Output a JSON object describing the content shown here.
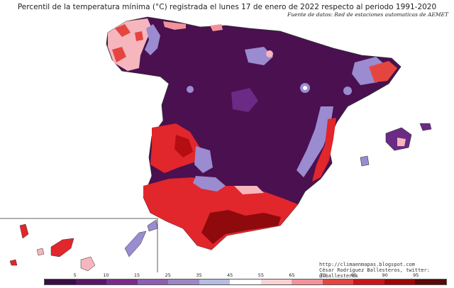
{
  "title": "Percentil de la temperatura mínima (°C) registrada el lunes 17 de enero de 2022 respecto al periodo 1991-2020",
  "source": "Fuente de datos: Red de estaciones automaticas de AEMET",
  "credit": {
    "url": "http://climaenmapas.blogspot.com",
    "author": "César Rodríguez Ballesteros, twitter: @cballesteros"
  },
  "legend": {
    "ticks": [
      "5",
      "10",
      "15",
      "25",
      "35",
      "45",
      "55",
      "65",
      "75",
      "85",
      "90",
      "95"
    ],
    "colors": [
      "#3a0d44",
      "#5c1467",
      "#7a2a8c",
      "#8e5eb0",
      "#9c86c4",
      "#b6bde0",
      "#ffffff",
      "#fad2d6",
      "#f2939a",
      "#e5453f",
      "#cc1418",
      "#9c0707",
      "#5a0808"
    ]
  },
  "palette": {
    "deep_purple": "#4a1050",
    "purple": "#6b2a86",
    "lavender": "#9b8bd0",
    "white": "#ffffff",
    "pink": "#f5b6bd",
    "red": "#e1262c",
    "dark_red": "#8e0a0d"
  }
}
